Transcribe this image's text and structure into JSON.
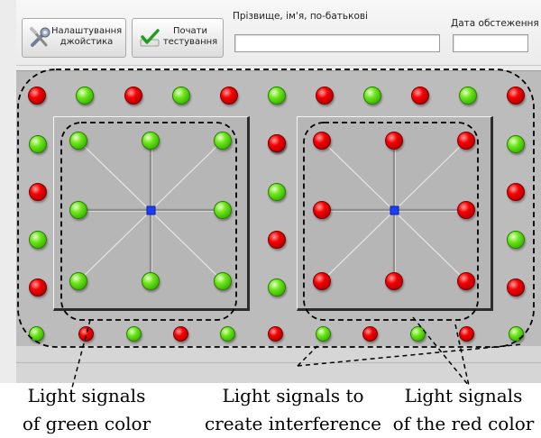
{
  "toolbar": {
    "joystick_button_label": "Налаштування\nджойстика",
    "joystick_icon": "tools-icon",
    "start_button_label": "Почати\nтестування",
    "start_icon": "checkmark-icon",
    "name_label": "Прізвище, ім'я, по-батькові",
    "name_value": "",
    "date_label": "Дата обстеження",
    "date_value": ""
  },
  "colors": {
    "red": "#e60000",
    "green": "#4fcc10",
    "center_marker": "#1a3cff",
    "panel": "#bcbcbc"
  },
  "frame_signals": {
    "top_row": [
      "red",
      "green",
      "red",
      "green",
      "red",
      "green",
      "red",
      "green",
      "red",
      "green",
      "red"
    ],
    "left_column": [
      "green",
      "red",
      "green",
      "red"
    ],
    "middle_column": [
      "red",
      "green",
      "red",
      "green",
      "red"
    ],
    "right_column": [
      "green",
      "red",
      "green",
      "red"
    ],
    "bottom_row": [
      "green",
      "red",
      "green",
      "red",
      "green",
      "red",
      "green",
      "red",
      "green",
      "red",
      "green"
    ]
  },
  "boards": [
    {
      "name": "green-board",
      "signals": [
        "green",
        "green",
        "green",
        "green",
        "green",
        "green",
        "green",
        "green"
      ]
    },
    {
      "name": "red-board",
      "signals": [
        "red",
        "red",
        "red",
        "red",
        "red",
        "red",
        "red",
        "red"
      ]
    }
  ],
  "captions": {
    "green": "Light signals\nof green color",
    "interference": "Light signals to\ncreate interference",
    "red": "Light signals\nof the red color"
  }
}
